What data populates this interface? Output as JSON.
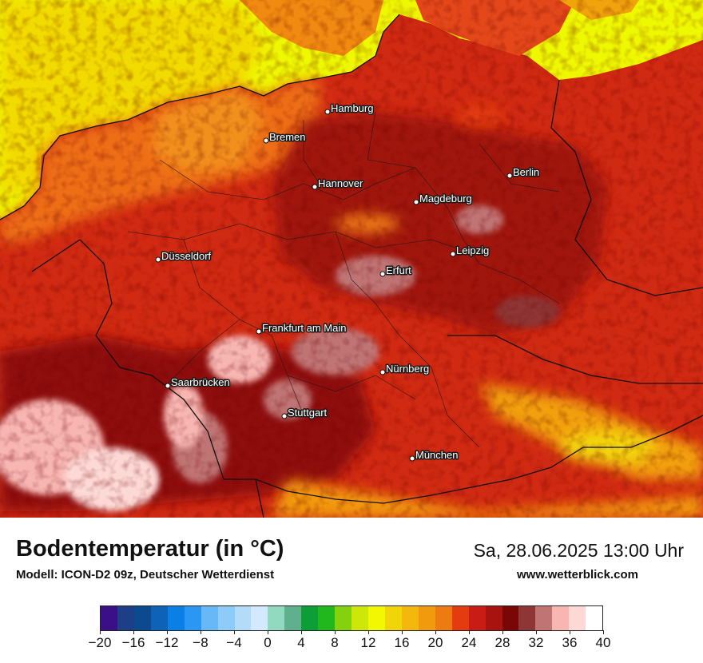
{
  "header": {
    "title": "Bodentemperatur (in °C)",
    "subtitle": "Modell: ICON-D2 09z, Deutscher Wetterdienst",
    "datetime": "Sa, 28.06.2025 13:00 Uhr",
    "website": "www.wetterblick.com"
  },
  "map": {
    "cities": [
      {
        "name": "Hamburg"
      },
      {
        "name": "Bremen"
      },
      {
        "name": "Hannover"
      },
      {
        "name": "Berlin"
      },
      {
        "name": "Magdeburg"
      },
      {
        "name": "Düsseldorf"
      },
      {
        "name": "Leipzig"
      },
      {
        "name": "Erfurt"
      },
      {
        "name": "Frankfurt am Main"
      },
      {
        "name": "Nürnberg"
      },
      {
        "name": "Saarbrücken"
      },
      {
        "name": "Stuttgart"
      },
      {
        "name": "München"
      }
    ]
  },
  "legend": {
    "unit": "°C",
    "min": -20,
    "max": 40,
    "step": 2,
    "colors": [
      "#3b0f88",
      "#1c3f87",
      "#0b4a8f",
      "#0e63b8",
      "#0a80e6",
      "#2b97f5",
      "#66b8f7",
      "#8ecbf8",
      "#b3dcfb",
      "#d3e9fd",
      "#91d9bf",
      "#5fb18d",
      "#0d9e38",
      "#21b81e",
      "#86d10e",
      "#cde808",
      "#f1f800",
      "#f2d508",
      "#f3b80b",
      "#f29a0e",
      "#ee7a12",
      "#e53c0f",
      "#c91c14",
      "#a81310",
      "#7b0606",
      "#8e3535",
      "#c07474",
      "#f7b6b2",
      "#fdd9d6",
      "#ffffff"
    ],
    "tick_labels": [
      "−20",
      "−16",
      "−12",
      "−8",
      "−4",
      "0",
      "4",
      "8",
      "12",
      "16",
      "20",
      "24",
      "28",
      "32",
      "36",
      "40"
    ]
  }
}
